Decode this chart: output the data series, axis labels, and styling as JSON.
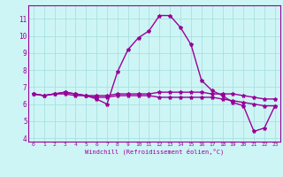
{
  "xlabel": "Windchill (Refroidissement éolien,°C)",
  "background_color": "#cef5f5",
  "grid_color": "#a8e0e0",
  "line_color": "#990099",
  "x_values": [
    0,
    1,
    2,
    3,
    4,
    5,
    6,
    7,
    8,
    9,
    10,
    11,
    12,
    13,
    14,
    15,
    16,
    17,
    18,
    19,
    20,
    21,
    22,
    23
  ],
  "series": [
    [
      6.6,
      6.5,
      6.6,
      6.7,
      6.6,
      6.5,
      6.3,
      6.0,
      7.9,
      9.2,
      9.9,
      10.3,
      11.2,
      11.2,
      10.5,
      9.5,
      7.4,
      6.8,
      6.5,
      6.1,
      5.9,
      4.4,
      4.6,
      5.9
    ],
    [
      6.6,
      6.5,
      6.6,
      6.7,
      6.6,
      6.5,
      6.4,
      6.4,
      6.5,
      6.5,
      6.5,
      6.5,
      6.4,
      6.4,
      6.4,
      6.4,
      6.4,
      6.4,
      6.3,
      6.2,
      6.1,
      6.0,
      5.9,
      5.9
    ],
    [
      6.6,
      6.5,
      6.6,
      6.6,
      6.5,
      6.5,
      6.5,
      6.5,
      6.6,
      6.6,
      6.6,
      6.6,
      6.7,
      6.7,
      6.7,
      6.7,
      6.7,
      6.6,
      6.6,
      6.6,
      6.5,
      6.4,
      6.3,
      6.3
    ]
  ],
  "ylim": [
    3.8,
    11.8
  ],
  "xlim": [
    -0.5,
    23.5
  ],
  "yticks": [
    4,
    5,
    6,
    7,
    8,
    9,
    10,
    11
  ],
  "xticks": [
    0,
    1,
    2,
    3,
    4,
    5,
    6,
    7,
    8,
    9,
    10,
    11,
    12,
    13,
    14,
    15,
    16,
    17,
    18,
    19,
    20,
    21,
    22,
    23
  ],
  "xtick_labels": [
    "0",
    "1",
    "2",
    "3",
    "4",
    "5",
    "6",
    "7",
    "8",
    "9",
    "10",
    "11",
    "12",
    "13",
    "14",
    "15",
    "16",
    "17",
    "18",
    "19",
    "20",
    "21",
    "22",
    "23"
  ],
  "ytick_labels": [
    "4",
    "5",
    "6",
    "7",
    "8",
    "9",
    "10",
    "11"
  ],
  "marker": "*",
  "marker_size": 3,
  "line_width": 1.0
}
